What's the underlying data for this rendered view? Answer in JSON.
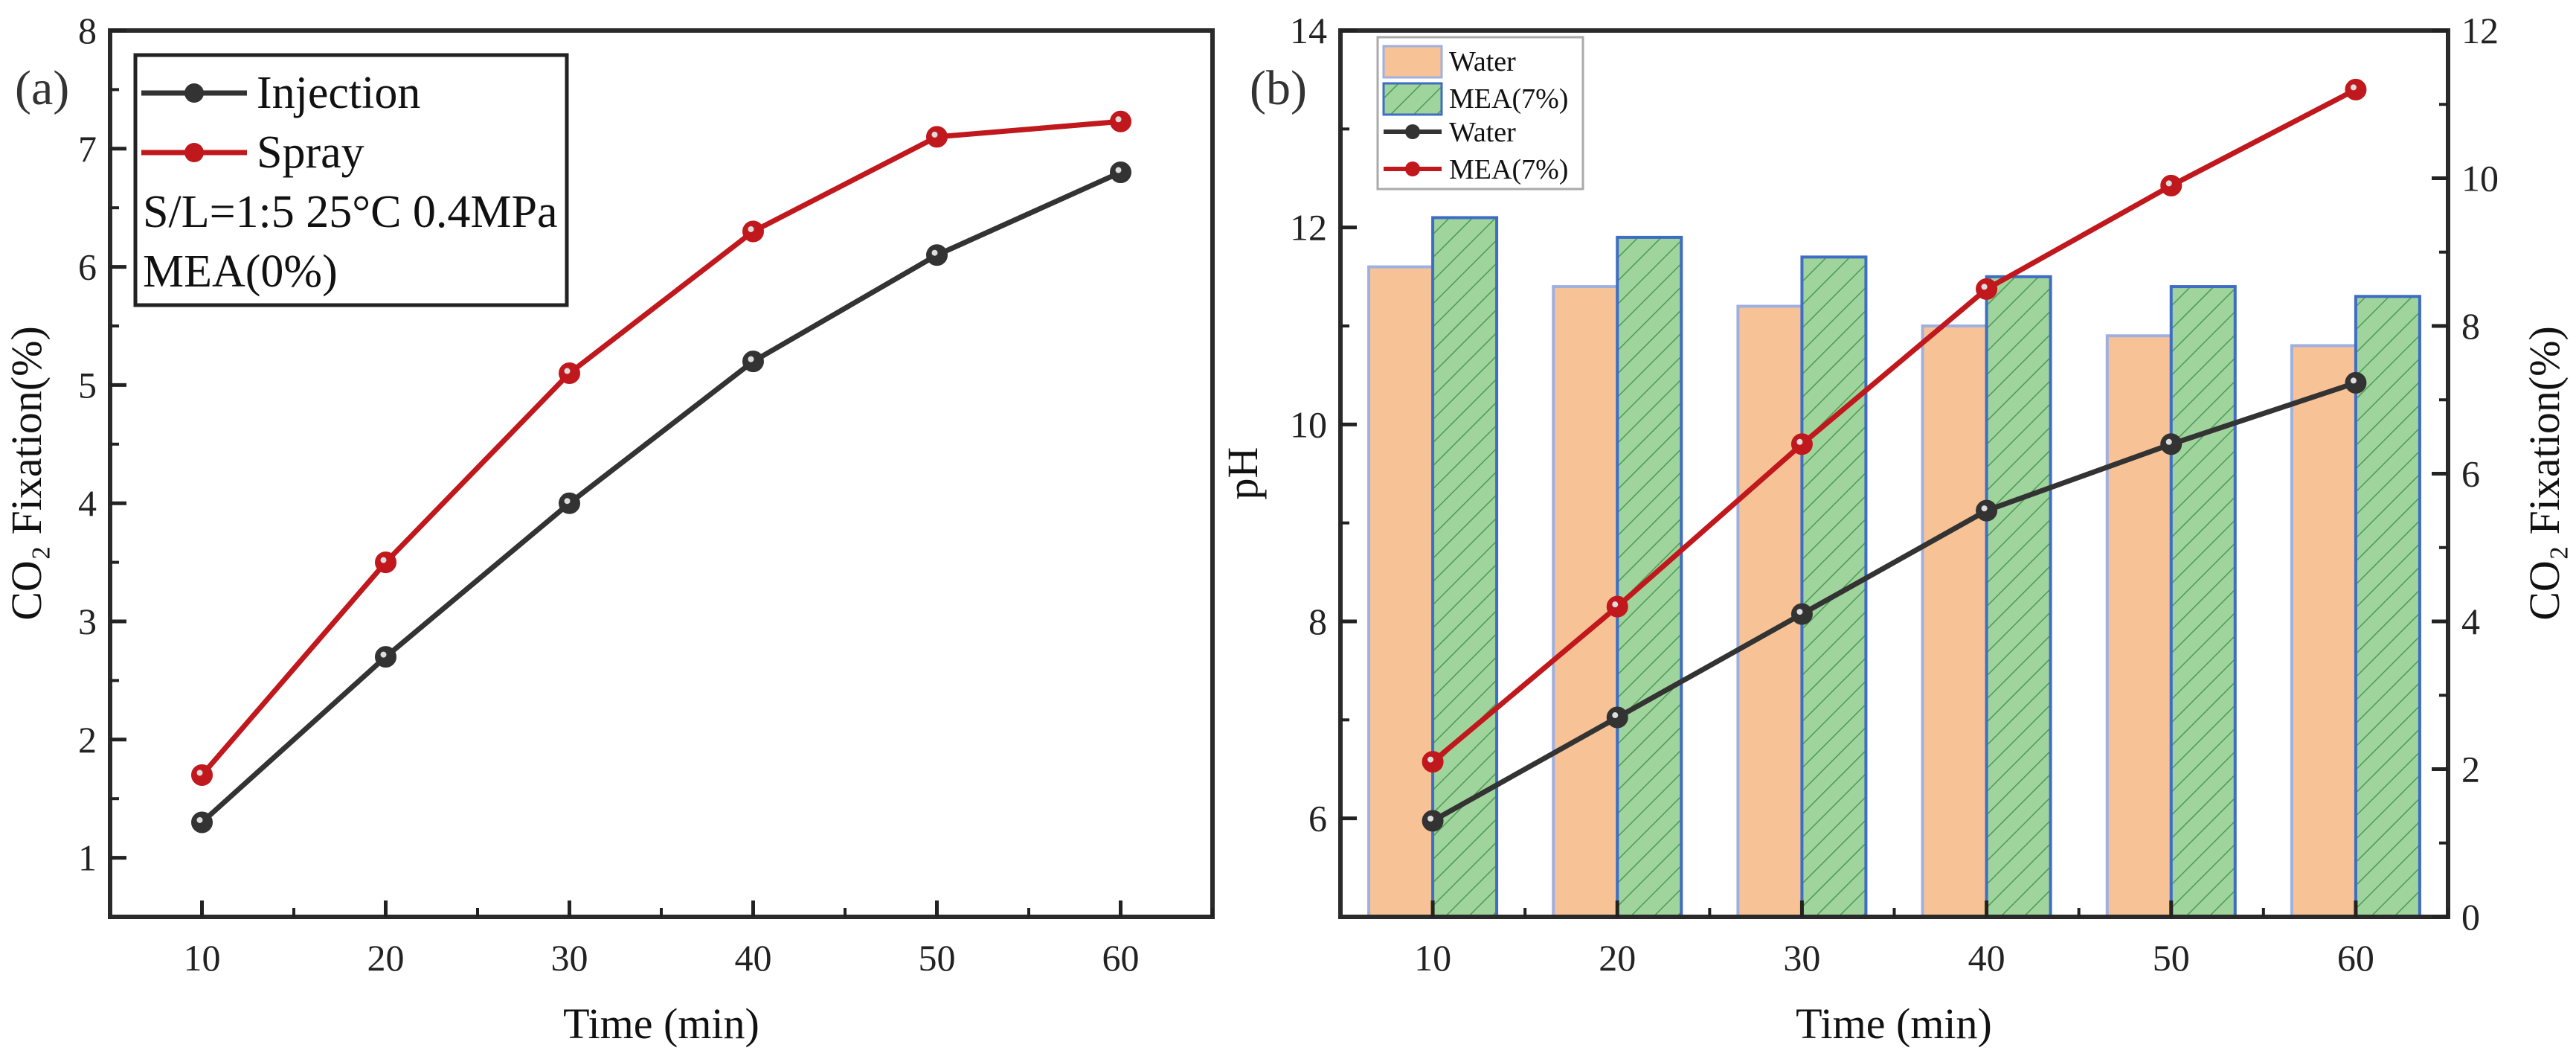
{
  "chart_data": [
    {
      "type": "line",
      "panel_label": "(a)",
      "title": "",
      "xlabel": "Time (min)",
      "ylabel": "CO₂ Fixation(%)",
      "x": [
        10,
        20,
        30,
        40,
        50,
        60
      ],
      "xlim": [
        5,
        65
      ],
      "ylim": [
        0.5,
        8
      ],
      "xticks": [
        10,
        20,
        30,
        40,
        50,
        60
      ],
      "yticks": [
        1,
        2,
        3,
        4,
        5,
        6,
        7,
        8
      ],
      "grid": false,
      "legend_position": "top-left",
      "series": [
        {
          "name": "Injection",
          "color": "#333333",
          "values": [
            1.3,
            2.7,
            4.0,
            5.2,
            6.1,
            6.8
          ]
        },
        {
          "name": "Spray",
          "color": "#c0181c",
          "values": [
            1.7,
            3.5,
            5.1,
            6.3,
            7.1,
            7.23
          ]
        }
      ],
      "annotations": [
        "S/L=1:5 25°C 0.4MPa",
        "MEA(0%)"
      ]
    },
    {
      "type": "bar+line",
      "panel_label": "(b)",
      "title": "",
      "xlabel": "Time (min)",
      "ylabel_left": "pH",
      "ylabel_right": "CO₂ Fixation(%)",
      "x": [
        10,
        20,
        30,
        40,
        50,
        60
      ],
      "xlim": [
        5,
        65
      ],
      "ylim_left": [
        5,
        14
      ],
      "ylim_right": [
        0,
        12
      ],
      "xticks": [
        10,
        20,
        30,
        40,
        50,
        60
      ],
      "yticks_left": [
        6,
        8,
        10,
        12,
        14
      ],
      "yticks_right": [
        0,
        2,
        4,
        6,
        8,
        10,
        12
      ],
      "grid": false,
      "legend_position": "top-left",
      "bar_series": [
        {
          "name": "Water",
          "axis": "left",
          "color": "#f7c396",
          "edge": "#9fb0e0",
          "values": [
            11.6,
            11.4,
            11.2,
            11.0,
            10.9,
            10.8
          ]
        },
        {
          "name": "MEA(7%)",
          "axis": "left",
          "color": "#9fd49c",
          "edge": "#3f6cc4",
          "hatch": true,
          "values": [
            12.1,
            11.9,
            11.7,
            11.5,
            11.4,
            11.3
          ]
        }
      ],
      "line_series": [
        {
          "name": "Water",
          "axis": "right",
          "color": "#333333",
          "values": [
            1.3,
            2.7,
            4.1,
            5.5,
            6.4,
            7.23
          ]
        },
        {
          "name": "MEA(7%)",
          "axis": "right",
          "color": "#c0181c",
          "values": [
            2.1,
            4.2,
            6.4,
            8.5,
            9.9,
            11.2
          ]
        }
      ]
    }
  ]
}
